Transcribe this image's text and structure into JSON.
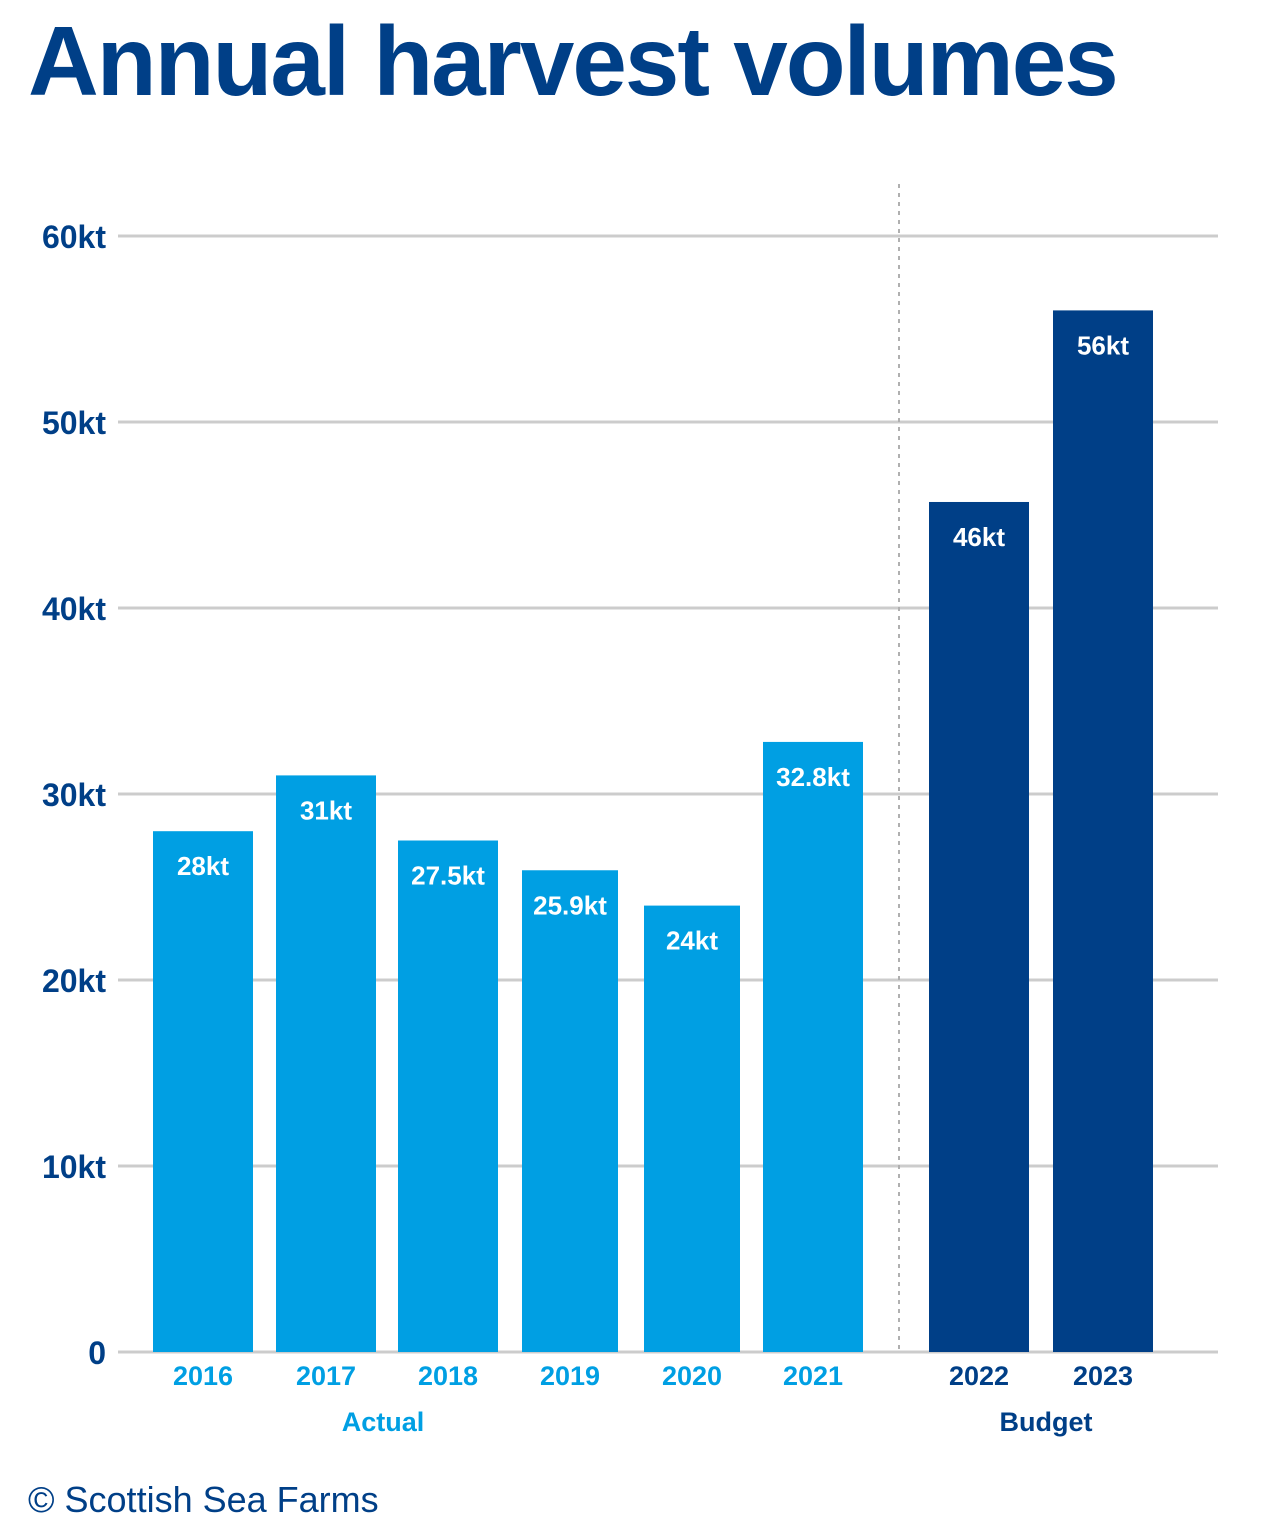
{
  "colors": {
    "title": "#003f87",
    "actual": "#009fe3",
    "budget": "#003f87",
    "grid": "#cccccc",
    "divider": "#b0b0b0",
    "bar_label": "#ffffff"
  },
  "credit": "© Scottish Sea Farms",
  "chart_data": {
    "type": "bar",
    "title": "Annual harvest volumes",
    "xlabel": "",
    "ylabel": "",
    "ylim": [
      0,
      60
    ],
    "yticks": [
      {
        "value": 0,
        "label": "0"
      },
      {
        "value": 10,
        "label": "10kt"
      },
      {
        "value": 20,
        "label": "20kt"
      },
      {
        "value": 30,
        "label": "30kt"
      },
      {
        "value": 40,
        "label": "40kt"
      },
      {
        "value": 50,
        "label": "50kt"
      },
      {
        "value": 60,
        "label": "60kt"
      }
    ],
    "grid": true,
    "categories": [
      "2016",
      "2017",
      "2018",
      "2019",
      "2020",
      "2021",
      "2022",
      "2023"
    ],
    "values": [
      28,
      31,
      27.5,
      25.9,
      24,
      32.8,
      45.7,
      56
    ],
    "data_labels": [
      "28kt",
      "31kt",
      "27.5kt",
      "25.9kt",
      "24kt",
      "32.8kt",
      "46kt",
      "56kt"
    ],
    "groups": [
      {
        "name": "Actual",
        "categories": [
          "2016",
          "2017",
          "2018",
          "2019",
          "2020",
          "2021"
        ]
      },
      {
        "name": "Budget",
        "categories": [
          "2022",
          "2023"
        ]
      }
    ]
  }
}
